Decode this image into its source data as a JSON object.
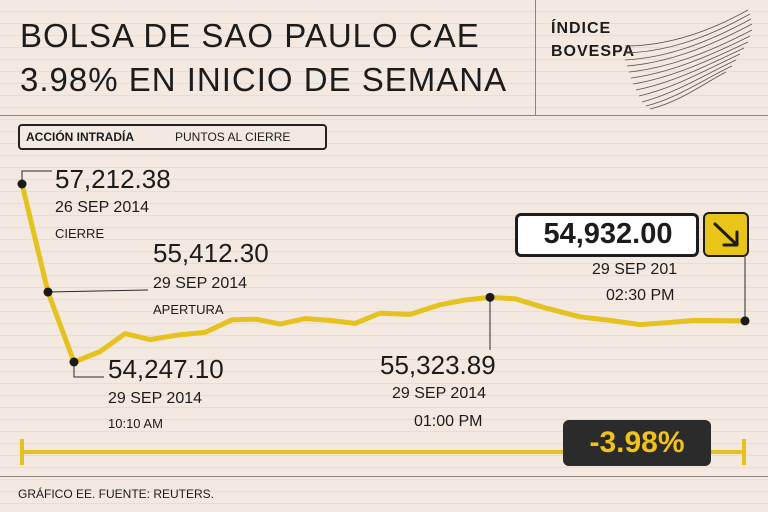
{
  "header": {
    "title_line1": "BOLSA DE SAO PAULO CAE",
    "title_line2": "3.98% EN INICIO DE SEMANA",
    "brand_line1": "ÍNDICE",
    "brand_line2": "BOVESPA"
  },
  "legend": {
    "bold_label": "ACCIÓN INTRADÍA",
    "label": "PUNTOS AL CIERRE"
  },
  "annotations": {
    "close": {
      "value": "57,212.38",
      "date": "26 SEP 2014",
      "note": "CIERRE"
    },
    "open": {
      "value": "55,412.30",
      "date": "29 SEP 2014",
      "note": "APERTURA"
    },
    "low": {
      "value": "54,247.10",
      "date": "29 SEP 2014",
      "time": "10:10 AM"
    },
    "midday": {
      "value": "55,323.89",
      "date": "29 SEP 2014",
      "time": "01:00 PM"
    },
    "last": {
      "value": "54,932.00",
      "date": "29 SEP 201",
      "time": "02:30 PM"
    }
  },
  "change": {
    "label": "-3.98%"
  },
  "footer": {
    "source": "GRÁFICO EE. FUENTE: REUTERS."
  },
  "colors": {
    "line": "#e5c21f",
    "text": "#1c1c1c",
    "badge_bg": "#2b2b2b",
    "badge_text": "#f2c21a",
    "arrow_bg": "#e9c419"
  },
  "icons": {
    "trend": "arrow-down-right-icon",
    "brand": "swoosh-lines-logo"
  },
  "chart_data": {
    "type": "line",
    "title": "",
    "xlabel": "",
    "ylabel": "",
    "ylim": [
      53500,
      57500
    ],
    "grid": false,
    "legend": "none",
    "series": [
      {
        "points": [
          {
            "x": "26 SEP 2014 CIERRE",
            "y": 57212.38
          },
          {
            "x": "29 SEP 2014 APERTURA",
            "y": 55412.3
          },
          {
            "x": "29 SEP 2014 10:10 AM",
            "y": 54247.1
          },
          {
            "x": "",
            "y": 54420
          },
          {
            "x": "",
            "y": 54720
          },
          {
            "x": "",
            "y": 54620
          },
          {
            "x": "",
            "y": 54690
          },
          {
            "x": "",
            "y": 54740
          },
          {
            "x": "",
            "y": 54950
          },
          {
            "x": "",
            "y": 54960
          },
          {
            "x": "",
            "y": 54880
          },
          {
            "x": "",
            "y": 54970
          },
          {
            "x": "",
            "y": 54940
          },
          {
            "x": "",
            "y": 54890
          },
          {
            "x": "",
            "y": 55060
          },
          {
            "x": "",
            "y": 55040
          },
          {
            "x": "",
            "y": 55200
          },
          {
            "x": "",
            "y": 55280
          },
          {
            "x": "29 SEP 2014 01:00 PM",
            "y": 55323.89
          },
          {
            "x": "",
            "y": 55300
          },
          {
            "x": "",
            "y": 55150
          },
          {
            "x": "",
            "y": 55000
          },
          {
            "x": "",
            "y": 54940
          },
          {
            "x": "",
            "y": 54870
          },
          {
            "x": "",
            "y": 54900
          },
          {
            "x": "",
            "y": 54940
          },
          {
            "x": "29 SEP 201 02:30 PM",
            "y": 54932.0
          }
        ]
      }
    ]
  }
}
